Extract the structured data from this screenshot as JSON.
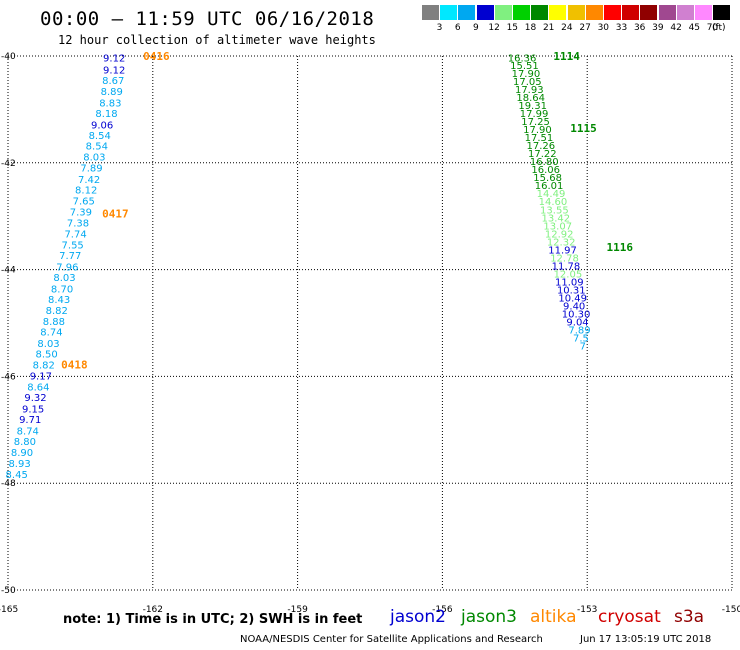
{
  "header": {
    "title": "00:00 – 11:59 UTC 06/16/2018",
    "subtitle": "12 hour collection of altimeter wave heights"
  },
  "color_scale": {
    "unit": "(ft)",
    "bins": [
      {
        "label": "3",
        "color": "#808080"
      },
      {
        "label": "6",
        "color": "#00e8ff"
      },
      {
        "label": "9",
        "color": "#00a8f0"
      },
      {
        "label": "12",
        "color": "#0000d0"
      },
      {
        "label": "15",
        "color": "#80f080"
      },
      {
        "label": "18",
        "color": "#00d000"
      },
      {
        "label": "21",
        "color": "#008800"
      },
      {
        "label": "24",
        "color": "#ffff00"
      },
      {
        "label": "27",
        "color": "#f0c000"
      },
      {
        "label": "30",
        "color": "#ff8800"
      },
      {
        "label": "33",
        "color": "#ff0000"
      },
      {
        "label": "36",
        "color": "#d00000"
      },
      {
        "label": "39",
        "color": "#900000"
      },
      {
        "label": "42",
        "color": "#a04890"
      },
      {
        "label": "45",
        "color": "#d080d0"
      },
      {
        "label": "70",
        "color": "#ff88ff"
      },
      {
        "label": "",
        "color": "#000000"
      }
    ]
  },
  "map": {
    "lon_ticks": [
      "-165",
      "-162",
      "-159",
      "-156",
      "-153",
      "-150"
    ],
    "lat_ticks": [
      "-40",
      "-42",
      "-44",
      "-46",
      "-48",
      "-50"
    ],
    "colors": {
      "c1": "#00a8f0",
      "c2": "#0000d0",
      "c3": "#80f080",
      "c4": "#008800",
      "time": "#ff8800",
      "time_g": "#008800"
    },
    "track_left": [
      {
        "v": "9.12",
        "c": "c2",
        "lon": -162.8,
        "lat": -40.03
      },
      {
        "v": "9.12",
        "c": "c2",
        "lon": -162.8,
        "lat": -40.25
      },
      {
        "v": "8.67",
        "c": "c1",
        "lon": -162.82,
        "lat": -40.45
      },
      {
        "v": "8.89",
        "c": "c1",
        "lon": -162.85,
        "lat": -40.66
      },
      {
        "v": "8.83",
        "c": "c1",
        "lon": -162.88,
        "lat": -40.87
      },
      {
        "v": "8.18",
        "c": "c1",
        "lon": -162.96,
        "lat": -41.07
      },
      {
        "v": "9.06",
        "c": "c2",
        "lon": -163.05,
        "lat": -41.28
      },
      {
        "v": "8.54",
        "c": "c1",
        "lon": -163.1,
        "lat": -41.48
      },
      {
        "v": "8.54",
        "c": "c1",
        "lon": -163.16,
        "lat": -41.68
      },
      {
        "v": "8.03",
        "c": "c1",
        "lon": -163.21,
        "lat": -41.88
      },
      {
        "v": "7.89",
        "c": "c1",
        "lon": -163.27,
        "lat": -42.09
      },
      {
        "v": "7.42",
        "c": "c1",
        "lon": -163.32,
        "lat": -42.3
      },
      {
        "v": "8.12",
        "c": "c1",
        "lon": -163.38,
        "lat": -42.5
      },
      {
        "v": "7.65",
        "c": "c1",
        "lon": -163.43,
        "lat": -42.71
      },
      {
        "v": "7.39",
        "c": "c1",
        "lon": -163.49,
        "lat": -42.91
      },
      {
        "v": "7.38",
        "c": "c1",
        "lon": -163.55,
        "lat": -43.12
      },
      {
        "v": "7.74",
        "c": "c1",
        "lon": -163.6,
        "lat": -43.32
      },
      {
        "v": "7.55",
        "c": "c1",
        "lon": -163.66,
        "lat": -43.53
      },
      {
        "v": "7.77",
        "c": "c1",
        "lon": -163.71,
        "lat": -43.73
      },
      {
        "v": "7.96",
        "c": "c1",
        "lon": -163.77,
        "lat": -43.94
      },
      {
        "v": "8.03",
        "c": "c1",
        "lon": -163.83,
        "lat": -44.14
      },
      {
        "v": "8.70",
        "c": "c1",
        "lon": -163.88,
        "lat": -44.35
      },
      {
        "v": "8.43",
        "c": "c1",
        "lon": -163.94,
        "lat": -44.55
      },
      {
        "v": "8.82",
        "c": "c1",
        "lon": -163.99,
        "lat": -44.76
      },
      {
        "v": "8.88",
        "c": "c1",
        "lon": -164.05,
        "lat": -44.96
      },
      {
        "v": "8.74",
        "c": "c1",
        "lon": -164.1,
        "lat": -45.16
      },
      {
        "v": "8.03",
        "c": "c1",
        "lon": -164.16,
        "lat": -45.37
      },
      {
        "v": "8.50",
        "c": "c1",
        "lon": -164.2,
        "lat": -45.57
      },
      {
        "v": "8.82",
        "c": "c1",
        "lon": -164.26,
        "lat": -45.78
      },
      {
        "v": "9.17",
        "c": "c2",
        "lon": -164.32,
        "lat": -45.98
      },
      {
        "v": "8.64",
        "c": "c1",
        "lon": -164.37,
        "lat": -46.19
      },
      {
        "v": "9.32",
        "c": "c2",
        "lon": -164.43,
        "lat": -46.39
      },
      {
        "v": "9.15",
        "c": "c2",
        "lon": -164.48,
        "lat": -46.6
      },
      {
        "v": "9.71",
        "c": "c2",
        "lon": -164.54,
        "lat": -46.8
      },
      {
        "v": "8.74",
        "c": "c1",
        "lon": -164.59,
        "lat": -47.01
      },
      {
        "v": "8.80",
        "c": "c1",
        "lon": -164.65,
        "lat": -47.21
      },
      {
        "v": "8.90",
        "c": "c1",
        "lon": -164.71,
        "lat": -47.42
      },
      {
        "v": "8.93",
        "c": "c1",
        "lon": -164.76,
        "lat": -47.62
      },
      {
        "v": "8.45",
        "c": "c1",
        "lon": -164.82,
        "lat": -47.83
      }
    ],
    "track_right": [
      {
        "v": "16.36",
        "c": "c4",
        "lon": -154.35,
        "lat": -40.03
      },
      {
        "v": "15.51",
        "c": "c4",
        "lon": -154.3,
        "lat": -40.17
      },
      {
        "v": "17.90",
        "c": "c4",
        "lon": -154.27,
        "lat": -40.32
      },
      {
        "v": "17.05",
        "c": "c4",
        "lon": -154.24,
        "lat": -40.47
      },
      {
        "v": "17.93",
        "c": "c4",
        "lon": -154.2,
        "lat": -40.62
      },
      {
        "v": "18.64",
        "c": "c4",
        "lon": -154.17,
        "lat": -40.77
      },
      {
        "v": "19.31",
        "c": "c4",
        "lon": -154.13,
        "lat": -40.92
      },
      {
        "v": "17.99",
        "c": "c4",
        "lon": -154.1,
        "lat": -41.07
      },
      {
        "v": "17.25",
        "c": "c4",
        "lon": -154.07,
        "lat": -41.22
      },
      {
        "v": "17.90",
        "c": "c4",
        "lon": -154.03,
        "lat": -41.37
      },
      {
        "v": "17.51",
        "c": "c4",
        "lon": -154.0,
        "lat": -41.52
      },
      {
        "v": "17.26",
        "c": "c4",
        "lon": -153.96,
        "lat": -41.67
      },
      {
        "v": "17.22",
        "c": "c4",
        "lon": -153.93,
        "lat": -41.82
      },
      {
        "v": "16.80",
        "c": "c4",
        "lon": -153.89,
        "lat": -41.97
      },
      {
        "v": "16.06",
        "c": "c4",
        "lon": -153.86,
        "lat": -42.12
      },
      {
        "v": "15.68",
        "c": "c4",
        "lon": -153.82,
        "lat": -42.27
      },
      {
        "v": "16.01",
        "c": "c4",
        "lon": -153.79,
        "lat": -42.42
      },
      {
        "v": "14.49",
        "c": "c3",
        "lon": -153.75,
        "lat": -42.57
      },
      {
        "v": "14.60",
        "c": "c3",
        "lon": -153.71,
        "lat": -42.72
      },
      {
        "v": "13.55",
        "c": "c3",
        "lon": -153.68,
        "lat": -42.87
      },
      {
        "v": "13.42",
        "c": "c3",
        "lon": -153.65,
        "lat": -43.02
      },
      {
        "v": "13.07",
        "c": "c3",
        "lon": -153.61,
        "lat": -43.17
      },
      {
        "v": "12.92",
        "c": "c3",
        "lon": -153.58,
        "lat": -43.32
      },
      {
        "v": "12.32",
        "c": "c3",
        "lon": -153.54,
        "lat": -43.47
      },
      {
        "v": "11.97",
        "c": "c2",
        "lon": -153.51,
        "lat": -43.62
      },
      {
        "v": "12.78",
        "c": "c3",
        "lon": -153.47,
        "lat": -43.77
      },
      {
        "v": "11.78",
        "c": "c2",
        "lon": -153.44,
        "lat": -43.92
      },
      {
        "v": "12.05",
        "c": "c3",
        "lon": -153.4,
        "lat": -44.07
      },
      {
        "v": "11.09",
        "c": "c2",
        "lon": -153.37,
        "lat": -44.22
      },
      {
        "v": "10.31",
        "c": "c2",
        "lon": -153.33,
        "lat": -44.37
      },
      {
        "v": "10.49",
        "c": "c2",
        "lon": -153.3,
        "lat": -44.52
      },
      {
        "v": "9.40",
        "c": "c2",
        "lon": -153.27,
        "lat": -44.67
      },
      {
        "v": "10.30",
        "c": "c2",
        "lon": -153.23,
        "lat": -44.82
      },
      {
        "v": "9.04",
        "c": "c2",
        "lon": -153.2,
        "lat": -44.97
      },
      {
        "v": "7.89",
        "c": "c1",
        "lon": -153.16,
        "lat": -45.12
      },
      {
        "v": "7.5",
        "c": "c1",
        "lon": -153.13,
        "lat": -45.27
      },
      {
        "v": "7",
        "c": "c1",
        "lon": -153.09,
        "lat": -45.42
      }
    ],
    "time_labels": [
      {
        "t": "0416",
        "c": "time",
        "lon": -162.2,
        "lat": -40.0
      },
      {
        "t": "0417",
        "c": "time",
        "lon": -163.05,
        "lat": -42.95
      },
      {
        "t": "0418",
        "c": "time",
        "lon": -163.9,
        "lat": -45.78
      },
      {
        "t": "1114",
        "c": "time_g",
        "lon": -153.7,
        "lat": -40.0
      },
      {
        "t": "1115",
        "c": "time_g",
        "lon": -153.35,
        "lat": -41.35
      },
      {
        "t": "1116",
        "c": "time_g",
        "lon": -152.6,
        "lat": -43.58
      }
    ]
  },
  "footer": {
    "note": "note:  1) Time is in UTC;  2) SWH is in feet",
    "satellites": [
      {
        "name": "jason2",
        "color": "#0000d0"
      },
      {
        "name": "jason3",
        "color": "#008800"
      },
      {
        "name": "altika",
        "color": "#ff8800"
      },
      {
        "name": "cryosat",
        "color": "#d00000"
      },
      {
        "name": "s3a",
        "color": "#900000"
      }
    ],
    "credit": "NOAA/NESDIS Center for Satellite Applications and Research",
    "timestamp": "Jun 17 13:05:19 UTC 2018"
  }
}
